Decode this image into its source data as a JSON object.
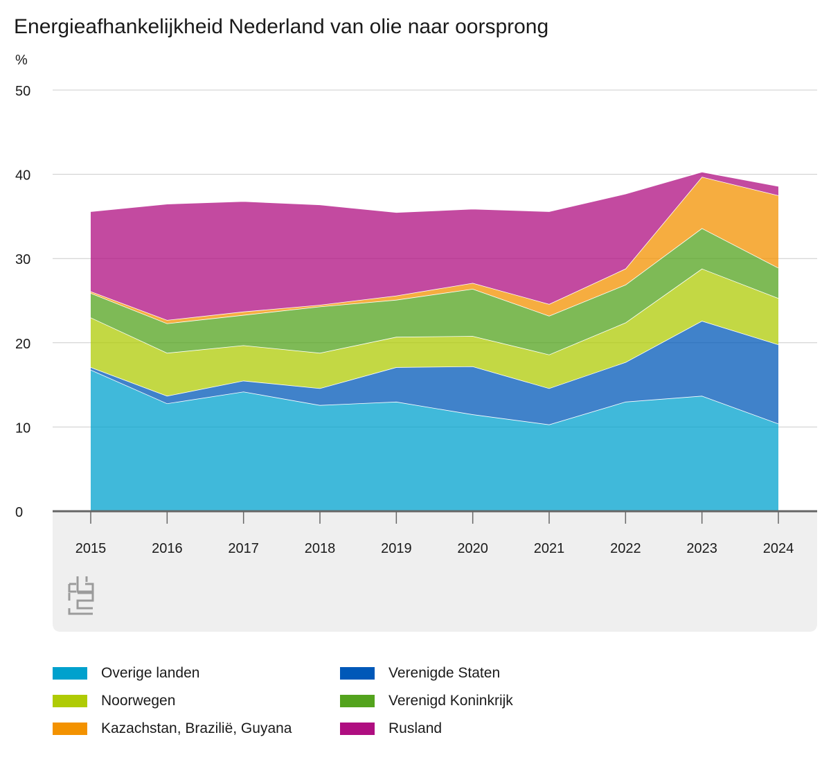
{
  "chart_data": {
    "type": "area",
    "stacked": true,
    "title": "Energieafhankelijkheid Nederland van olie naar oorsprong",
    "ylabel": "%",
    "xlabel": "",
    "ylim": [
      0,
      50
    ],
    "yticks": [
      0,
      10,
      20,
      30,
      40,
      50
    ],
    "grid": true,
    "legend_position": "bottom",
    "categories": [
      "2015",
      "2016",
      "2017",
      "2018",
      "2019",
      "2020",
      "2021",
      "2022",
      "2023",
      "2024"
    ],
    "series": [
      {
        "name": "Overige landen",
        "color": "#00a1cd",
        "values": [
          16.8,
          12.8,
          14.2,
          12.6,
          13.0,
          11.5,
          10.3,
          13.0,
          13.7,
          10.4
        ]
      },
      {
        "name": "Verenigde Staten",
        "color": "#0058b8",
        "values": [
          0.3,
          0.9,
          1.3,
          2.0,
          4.1,
          5.7,
          4.3,
          4.7,
          8.9,
          9.4
        ]
      },
      {
        "name": "Noorwegen",
        "color": "#afcb05",
        "values": [
          5.9,
          5.1,
          4.2,
          4.2,
          3.6,
          3.6,
          4.0,
          4.7,
          6.2,
          5.5
        ]
      },
      {
        "name": "Verenigd Koninkrijk",
        "color": "#53a31d",
        "values": [
          2.9,
          3.5,
          3.6,
          5.5,
          4.4,
          5.6,
          4.6,
          4.5,
          4.8,
          3.6
        ]
      },
      {
        "name": "Kazachstan, Brazilië, Guyana",
        "color": "#f39200",
        "values": [
          0.2,
          0.4,
          0.4,
          0.2,
          0.5,
          0.7,
          1.4,
          1.9,
          6.1,
          8.6
        ]
      },
      {
        "name": "Rusland",
        "color": "#af0e80",
        "values": [
          9.5,
          13.8,
          13.1,
          11.9,
          9.9,
          8.8,
          11.0,
          8.9,
          0.6,
          1.1
        ]
      }
    ]
  },
  "legend_order": [
    "Overige landen",
    "Verenigde Staten",
    "Noorwegen",
    "Verenigd Koninkrijk",
    "Kazachstan, Brazilië, Guyana",
    "Rusland"
  ],
  "logo": {
    "icon": "cbs-logo-icon",
    "color": "#9b9b9b"
  },
  "colors": {
    "axis": "#666666",
    "grid": "#cccccc",
    "panel": "#efefef"
  }
}
